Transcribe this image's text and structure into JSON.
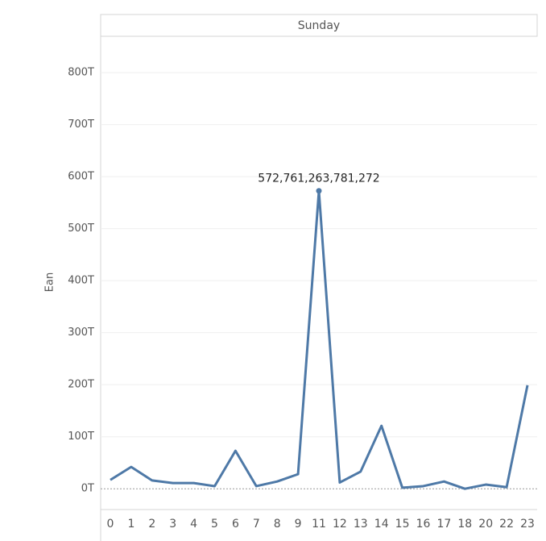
{
  "chart_data": {
    "type": "line",
    "title": "Sunday",
    "y_label": "Ean",
    "categories": [
      0,
      1,
      2,
      3,
      4,
      5,
      6,
      7,
      8,
      9,
      11,
      12,
      13,
      14,
      15,
      16,
      17,
      18,
      20,
      22,
      23
    ],
    "series": [
      {
        "name": "Ean",
        "color": "#4e79a7",
        "values": [
          17000000000000,
          42000000000000,
          16000000000000,
          11000000000000,
          11000000000000,
          5000000000000,
          73000000000000,
          5000000000000,
          14000000000000,
          28000000000000,
          572761263781272,
          12000000000000,
          33000000000000,
          121000000000000,
          2000000000000,
          5000000000000,
          14000000000000,
          0,
          8000000000000,
          3000000000000,
          199000000000000
        ],
        "value_labels": [
          null,
          null,
          null,
          null,
          null,
          null,
          null,
          null,
          null,
          null,
          "572,761,263,781,272",
          null,
          null,
          null,
          null,
          null,
          null,
          null,
          null,
          null,
          null
        ]
      }
    ],
    "ylim": [
      -40000000000000,
      870000000000000
    ],
    "yticks": [
      {
        "value": 0,
        "label": "0T"
      },
      {
        "value": 100000000000000,
        "label": "100T"
      },
      {
        "value": 200000000000000,
        "label": "200T"
      },
      {
        "value": 300000000000000,
        "label": "300T"
      },
      {
        "value": 400000000000000,
        "label": "400T"
      },
      {
        "value": 500000000000000,
        "label": "500T"
      },
      {
        "value": 600000000000000,
        "label": "600T"
      },
      {
        "value": 700000000000000,
        "label": "700T"
      },
      {
        "value": 800000000000000,
        "label": "800T"
      }
    ],
    "grid": true
  }
}
